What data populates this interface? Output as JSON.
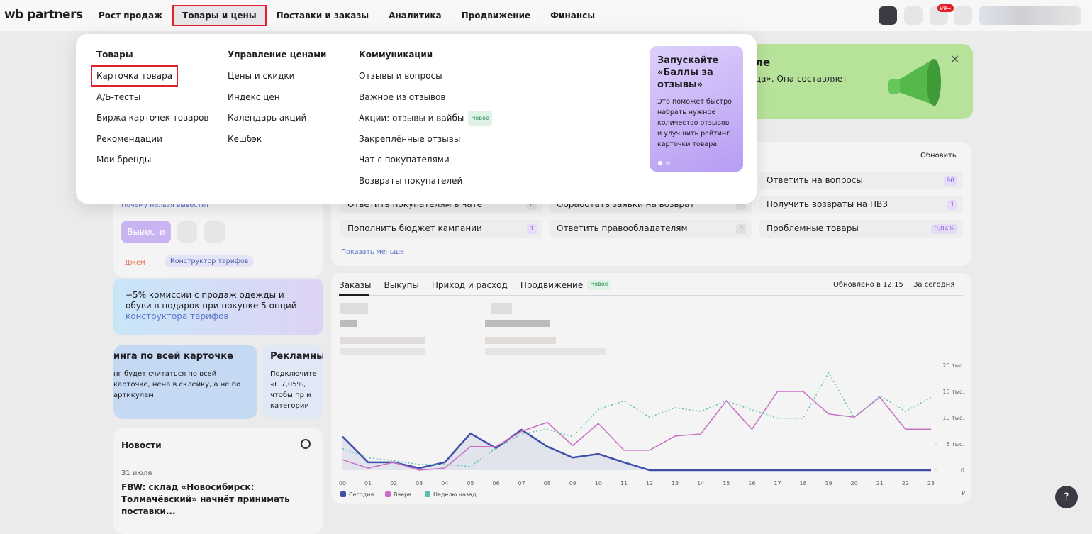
{
  "header": {
    "logo": "wb partners",
    "nav": [
      "Рост продаж",
      "Товары и цены",
      "Поставки и заказы",
      "Аналитика",
      "Продвижение",
      "Финансы"
    ],
    "notification_badge": "99+"
  },
  "menu": {
    "columns": [
      {
        "title": "Товары",
        "items": [
          "Карточка товара",
          "А/Б-тесты",
          "Биржа карточек товаров",
          "Рекомендации",
          "Мои бренды"
        ]
      },
      {
        "title": "Управление ценами",
        "items": [
          "Цены и скидки",
          "Индекс цен",
          "Календарь акций",
          "Кешбэк"
        ]
      },
      {
        "title": "Коммуникации",
        "items": [
          "Отзывы и вопросы",
          "Важное из отзывов",
          "Акции: отзывы и вайбы",
          "Закреплённые отзывы",
          "Чат с покупателями",
          "Возвраты покупателей"
        ]
      }
    ],
    "new_badge": "Новое",
    "promo": {
      "title": "Запускайте «Баллы за отзывы»",
      "text": "Это поможет быстро набрать нужное количество отзывов и улучшить рейтинг карточки товара"
    }
  },
  "banner": {
    "title": "ле",
    "text": "ца». Она составляет"
  },
  "tasks": {
    "refresh": "Обновить",
    "rows": [
      {
        "label": "Ответить на вопросы",
        "count": 96
      },
      {
        "label": "Ответить покупателям в чате",
        "count": 0
      },
      {
        "label": "Обработать заявки на возврат",
        "count": 0
      },
      {
        "label": "Получить возвраты на ПВЗ",
        "count": 1
      },
      {
        "label": "Пополнить бюджет кампании",
        "count": 1
      },
      {
        "label": "Ответить правообладателям",
        "count": 0
      },
      {
        "label": "Проблемные товары",
        "count": "0,04%"
      }
    ],
    "show_less": "Показать меньше"
  },
  "balance": {
    "why_link": "Почему нельзя вывести?",
    "withdraw": "Вывести",
    "tags": [
      "Джем",
      "Конструктор тарифов"
    ],
    "promo_text": "−5% комиссии с продаж одежды и обуви в подарок при покупке 5 опций ",
    "promo_link": "конструктора тарифов"
  },
  "cards": [
    {
      "title": "инга по всей карточке",
      "text": "нг будет считаться по всей карточке, нена в склейку, а не по артикулам"
    },
    {
      "title": "Рекламный",
      "text": "Подключите «Г 7,05%, чтобы пр и категории"
    }
  ],
  "news": {
    "title": "Новости",
    "date": "31 июля",
    "headline": "FBW: склад «Новосибирск: Толмачёвский» начнёт принимать поставки..."
  },
  "stats": {
    "tabs": [
      "Заказы",
      "Выкупы",
      "Приход и расход",
      "Продвижение"
    ],
    "new_badge": "Новое",
    "updated": "Обновлено в 12:15",
    "period": "За сегодня"
  },
  "orders_chart": {
    "type": "line",
    "categories": [
      "00",
      "01",
      "02",
      "03",
      "04",
      "05",
      "06",
      "07",
      "08",
      "09",
      "10",
      "11",
      "12",
      "13",
      "14",
      "15",
      "16",
      "17",
      "18",
      "19",
      "20",
      "21",
      "22",
      "23"
    ],
    "series": [
      {
        "name": "Сегодня",
        "color": "#3d4fa8",
        "values": [
          6400,
          1500,
          1500,
          400,
          1500,
          7000,
          4200,
          7700,
          4500,
          2400,
          3100,
          1500,
          0,
          0,
          0,
          0,
          0,
          0,
          0,
          0,
          0,
          0,
          0,
          0
        ]
      },
      {
        "name": "Вчера",
        "color": "#c86fc4",
        "values": [
          2000,
          400,
          1500,
          0,
          400,
          4500,
          4500,
          7400,
          9100,
          4700,
          8900,
          3800,
          3800,
          6500,
          6900,
          13200,
          7800,
          15000,
          15000,
          10700,
          10100,
          13900,
          7800,
          7800
        ]
      },
      {
        "name": "Неделю назад",
        "color": "#5cc0ae",
        "values": [
          4100,
          2400,
          1800,
          1100,
          1100,
          700,
          4200,
          6900,
          7800,
          6400,
          11600,
          13200,
          10100,
          11900,
          11200,
          13200,
          11500,
          9900,
          9900,
          18600,
          9900,
          14200,
          11200,
          13900
        ]
      }
    ],
    "ylim": [
      0,
      20000
    ],
    "yticks": [
      {
        "value": 0,
        "label": "0"
      },
      {
        "value": 5000,
        "label": "5 тыс."
      },
      {
        "value": 10000,
        "label": "10 тыс."
      },
      {
        "value": 15000,
        "label": "15 тыс."
      },
      {
        "value": 20000,
        "label": "20 тыс."
      }
    ],
    "unit": "₽"
  },
  "help": "?"
}
